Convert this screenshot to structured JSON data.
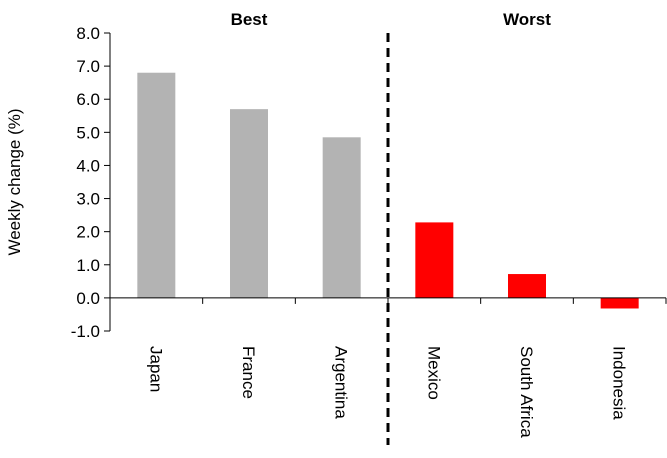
{
  "chart_data": {
    "type": "bar",
    "ylabel": "Weekly change (%)",
    "ylim": [
      -1.0,
      8.0
    ],
    "ytick_step": 1.0,
    "yticks": [
      "-1.0",
      "0.0",
      "1.0",
      "2.0",
      "3.0",
      "4.0",
      "5.0",
      "6.0",
      "7.0",
      "8.0"
    ],
    "groups": [
      {
        "label": "Best",
        "categories": [
          "Japan",
          "France",
          "Argentina"
        ],
        "values": [
          6.8,
          5.7,
          4.85
        ],
        "color": "#b3b3b3"
      },
      {
        "label": "Worst",
        "categories": [
          "Mexico",
          "South Africa",
          "Indonesia"
        ],
        "values": [
          2.28,
          0.72,
          -0.32
        ],
        "color": "#ff0000"
      }
    ],
    "divider": "dashed vertical line between Argentina and Mexico",
    "grid": false
  }
}
